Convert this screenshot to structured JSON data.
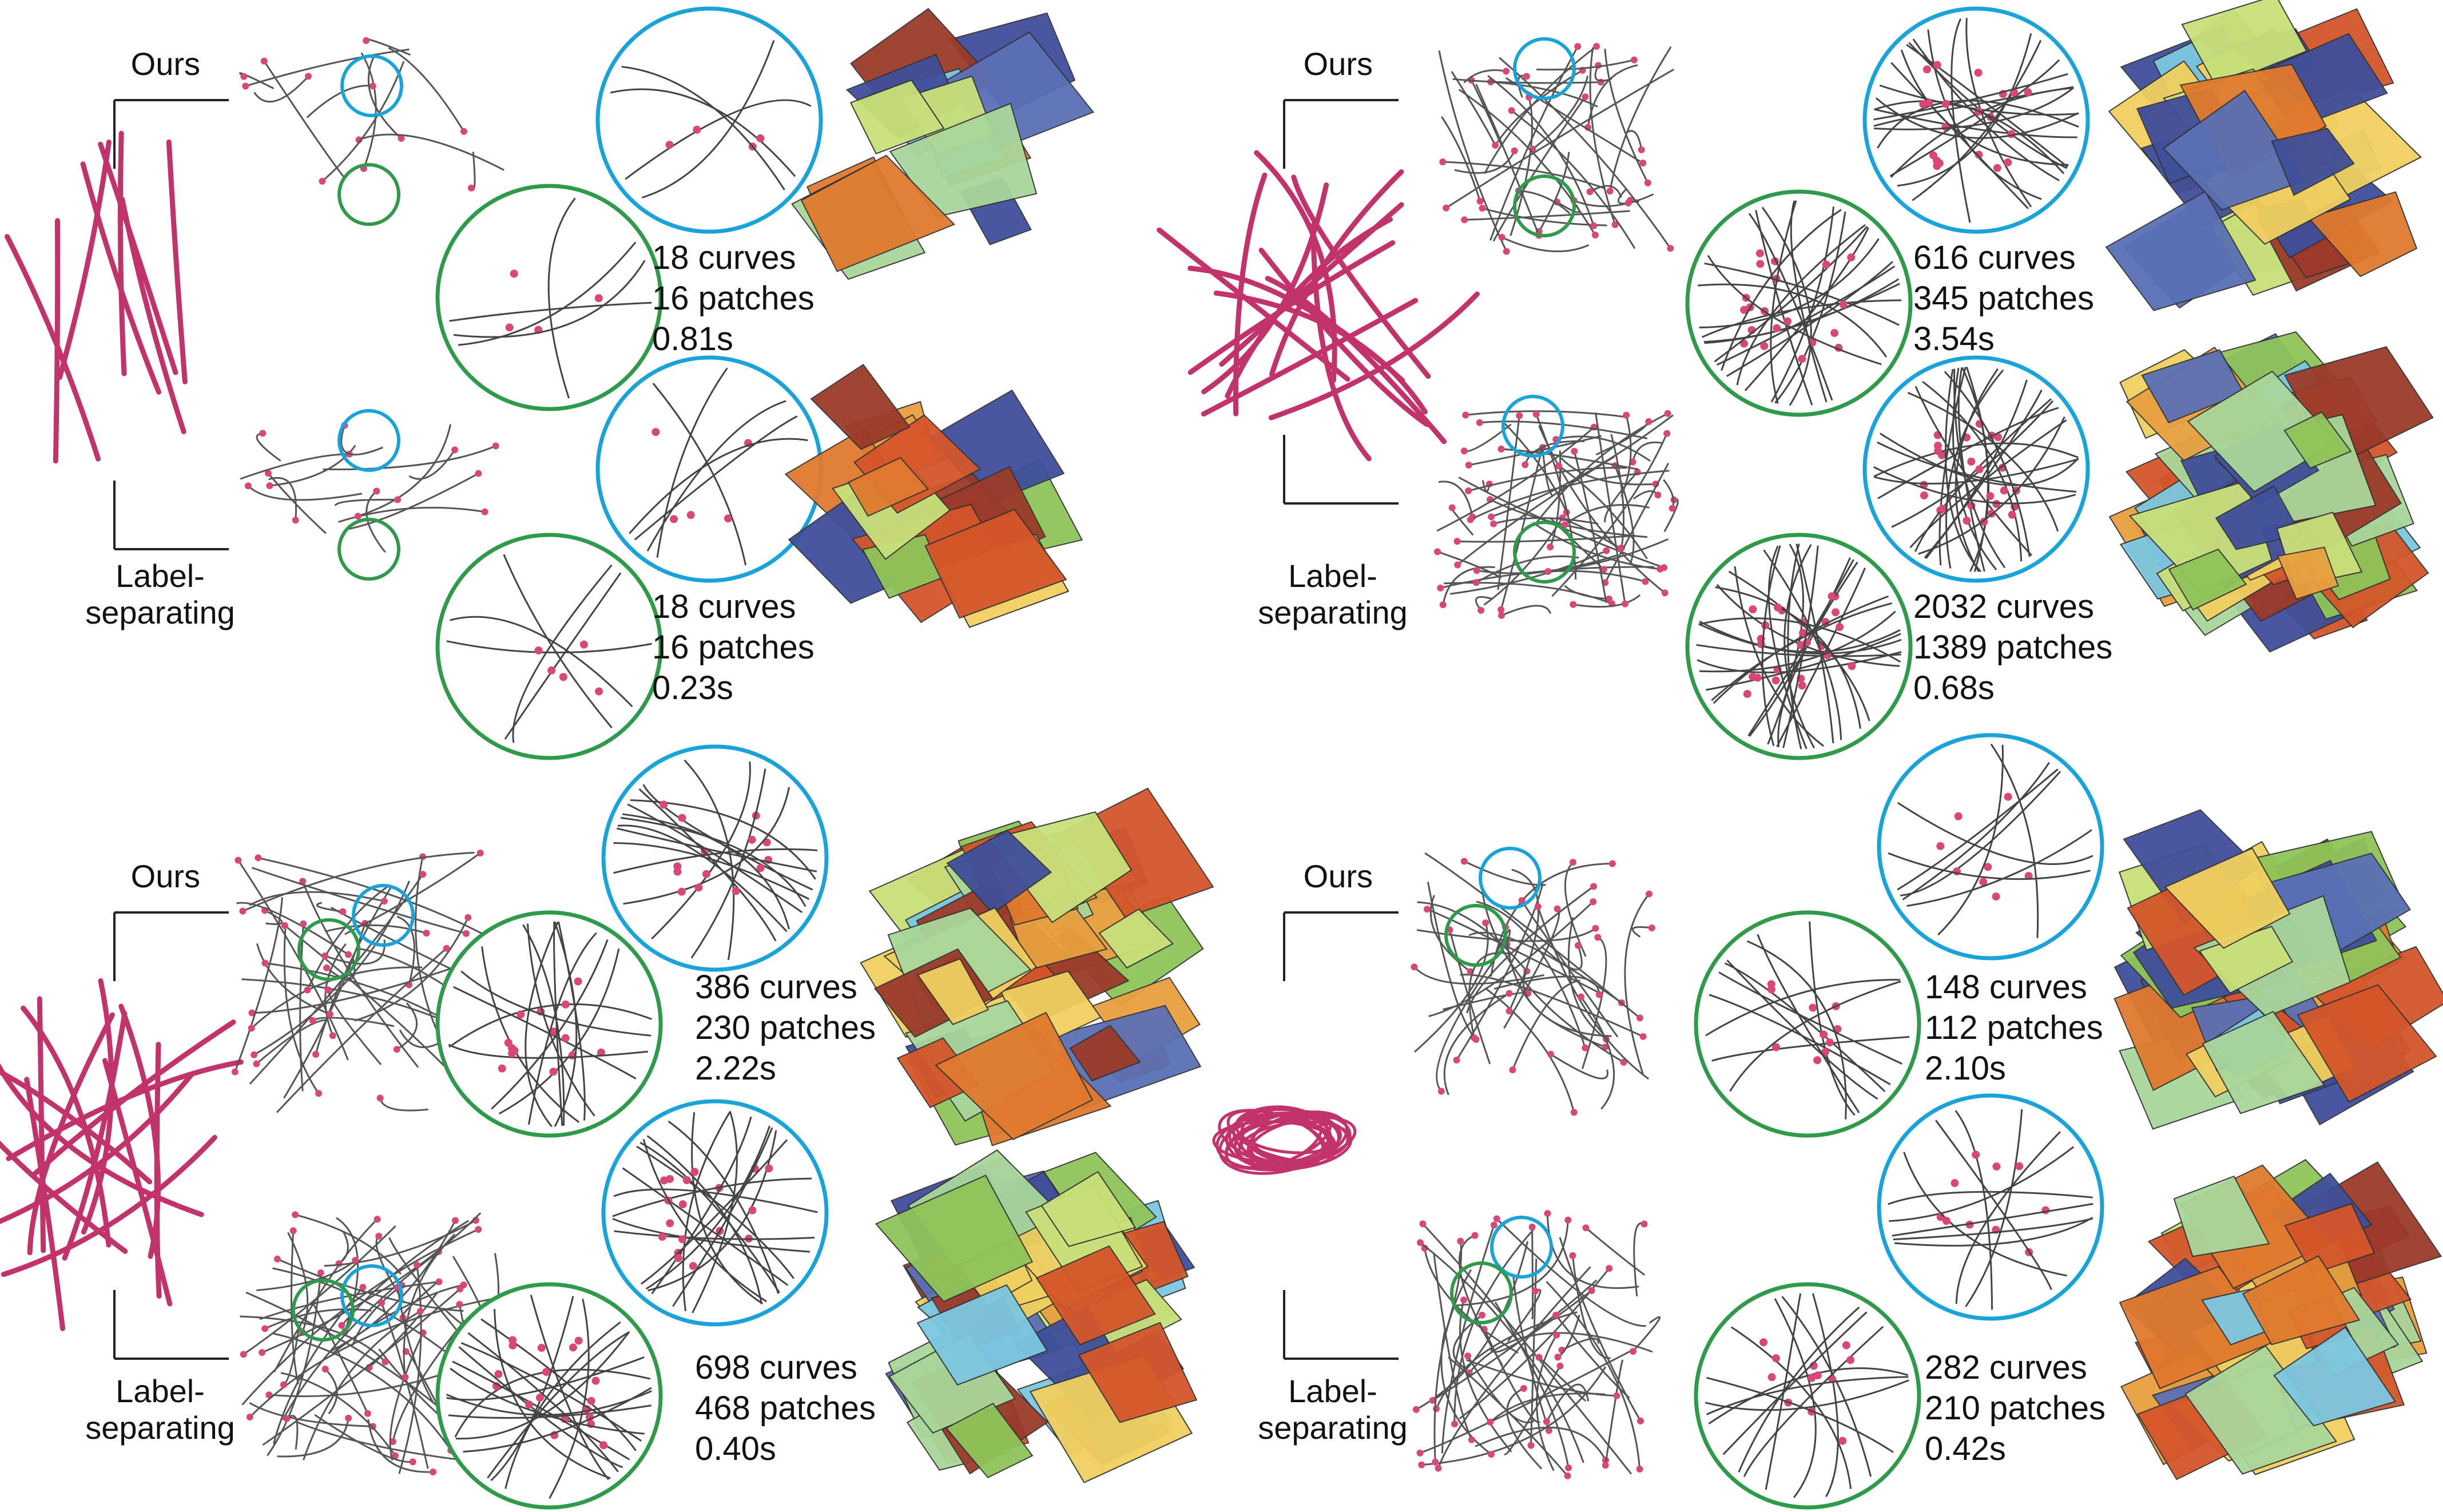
{
  "labels": {
    "ours": "Ours",
    "label_sep_line1": "Label-",
    "label_sep_line2": "separating"
  },
  "panels": [
    {
      "ours": {
        "curves": "18 curves",
        "patches": "16 patches",
        "time": "0.81s"
      },
      "label": {
        "curves": "18 curves",
        "patches": "16 patches",
        "time": "0.23s"
      }
    },
    {
      "ours": {
        "curves": "616 curves",
        "patches": "345 patches",
        "time": "3.54s"
      },
      "label": {
        "curves": "2032 curves",
        "patches": "1389 patches",
        "time": "0.68s"
      }
    },
    {
      "ours": {
        "curves": "386 curves",
        "patches": "230 patches",
        "time": "2.22s"
      },
      "label": {
        "curves": "698 curves",
        "patches": "468 patches",
        "time": "0.40s"
      }
    },
    {
      "ours": {
        "curves": "148 curves",
        "patches": "112 patches",
        "time": "2.10s"
      },
      "label": {
        "curves": "282 curves",
        "patches": "210 patches",
        "time": "0.42s"
      }
    }
  ],
  "colors": {
    "input_curve": "#c2336b",
    "vertex": "#d9467a",
    "zoom_blue": "#1aa3d9",
    "zoom_green": "#2e9a4a",
    "surface_palette": [
      "#e07a2e",
      "#d4562a",
      "#8fc45a",
      "#f0d060",
      "#7cc7e0",
      "#5a70b5",
      "#3f4f9a",
      "#a9d69a",
      "#c8e07a",
      "#e8a040",
      "#9b3a2a"
    ]
  }
}
